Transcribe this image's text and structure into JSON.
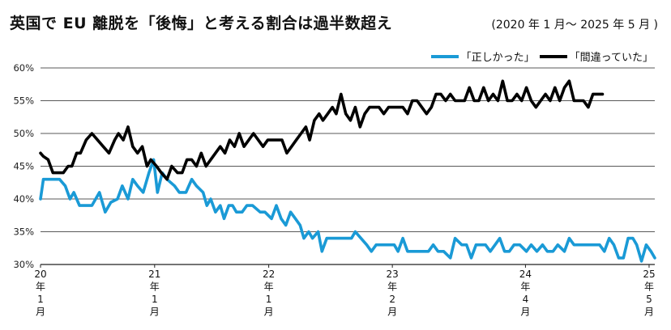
{
  "header": {
    "title": "英国で EU 離脱を「後悔」と考える割合は過半数超え",
    "subtitle": "(2020 年 1 月～ 2025 年 5 月 )"
  },
  "colors": {
    "correct": "#1a9ad6",
    "wrong": "#000000",
    "grid": "#222222"
  },
  "chart_data": {
    "type": "line",
    "title": "英国で EU 離脱を「後悔」と考える割合は過半数超え",
    "subtitle": "(2020 年 1 月～ 2025 年 5 月 )",
    "ylim": [
      30,
      60
    ],
    "yticks": [
      "30%",
      "35%",
      "40%",
      "45%",
      "50%",
      "55%",
      "60%"
    ],
    "ytick_values": [
      30,
      35,
      40,
      45,
      50,
      55,
      60
    ],
    "legend_position": "top-right",
    "x_start": "2020-01",
    "x_end": "2025-05",
    "x_ticks": [
      {
        "label": "20年1月",
        "lines": [
          "20",
          "年",
          "1",
          "月"
        ],
        "month_index": 0
      },
      {
        "label": "21年1月",
        "lines": [
          "21",
          "年",
          "1",
          "月"
        ],
        "month_index": 12
      },
      {
        "label": "22年1月",
        "lines": [
          "22",
          "年",
          "1",
          "月"
        ],
        "month_index": 24
      },
      {
        "label": "23年2月",
        "lines": [
          "23",
          "年",
          "2",
          "月"
        ],
        "month_index": 37
      },
      {
        "label": "24年4月",
        "lines": [
          "24",
          "年",
          "4",
          "月"
        ],
        "month_index": 51
      },
      {
        "label": "25年5月",
        "lines": [
          "25",
          "年",
          "5",
          "月"
        ],
        "month_index": 64
      }
    ],
    "series": [
      {
        "name": "「正しかった」",
        "color": "#1a9ad6",
        "points": [
          [
            0,
            40
          ],
          [
            0.3,
            43
          ],
          [
            1.1,
            43
          ],
          [
            2,
            43
          ],
          [
            2.6,
            42
          ],
          [
            3.1,
            40
          ],
          [
            3.5,
            41
          ],
          [
            4.1,
            39
          ],
          [
            4.9,
            39
          ],
          [
            5.4,
            39
          ],
          [
            6.2,
            41
          ],
          [
            6.8,
            38
          ],
          [
            7.4,
            39.5
          ],
          [
            8.1,
            40
          ],
          [
            8.6,
            42
          ],
          [
            9.2,
            40
          ],
          [
            9.7,
            43
          ],
          [
            10.2,
            42
          ],
          [
            10.8,
            41
          ],
          [
            11.4,
            44
          ],
          [
            11.9,
            46
          ],
          [
            12.3,
            41
          ],
          [
            12.8,
            44
          ],
          [
            13.3,
            43
          ],
          [
            14.1,
            42
          ],
          [
            14.6,
            41
          ],
          [
            15.3,
            41
          ],
          [
            15.9,
            43
          ],
          [
            16.4,
            42
          ],
          [
            17.1,
            41
          ],
          [
            17.5,
            39
          ],
          [
            17.9,
            40
          ],
          [
            18.4,
            38
          ],
          [
            18.9,
            39
          ],
          [
            19.3,
            37
          ],
          [
            19.8,
            39
          ],
          [
            20.2,
            39
          ],
          [
            20.6,
            38
          ],
          [
            21.2,
            38
          ],
          [
            21.7,
            39
          ],
          [
            22.3,
            39
          ],
          [
            23.1,
            38
          ],
          [
            23.6,
            38
          ],
          [
            24.3,
            37
          ],
          [
            24.8,
            39
          ],
          [
            25.3,
            37
          ],
          [
            25.8,
            36
          ],
          [
            26.3,
            38
          ],
          [
            26.8,
            37
          ],
          [
            27.3,
            36
          ],
          [
            27.7,
            34
          ],
          [
            28.2,
            35
          ],
          [
            28.6,
            34
          ],
          [
            29.2,
            35
          ],
          [
            29.6,
            32
          ],
          [
            30.1,
            34
          ],
          [
            30.6,
            34
          ],
          [
            31.3,
            34
          ],
          [
            32,
            34
          ],
          [
            32.7,
            34
          ],
          [
            33.1,
            35
          ],
          [
            33.7,
            34
          ],
          [
            34.3,
            33
          ],
          [
            34.8,
            32
          ],
          [
            35.3,
            33
          ],
          [
            35.9,
            33
          ],
          [
            36.6,
            33
          ],
          [
            37.2,
            33
          ],
          [
            37.6,
            32
          ],
          [
            38.1,
            34
          ],
          [
            38.6,
            32
          ],
          [
            39.1,
            32
          ],
          [
            39.6,
            32
          ],
          [
            40.3,
            32
          ],
          [
            40.8,
            32
          ],
          [
            41.3,
            33
          ],
          [
            41.8,
            32
          ],
          [
            42.4,
            32
          ],
          [
            43.1,
            31
          ],
          [
            43.6,
            34
          ],
          [
            44.3,
            33
          ],
          [
            44.8,
            33
          ],
          [
            45.3,
            31
          ],
          [
            45.8,
            33
          ],
          [
            46.3,
            33
          ],
          [
            46.8,
            33
          ],
          [
            47.3,
            32
          ],
          [
            47.8,
            33
          ],
          [
            48.3,
            34
          ],
          [
            48.8,
            32
          ],
          [
            49.3,
            32
          ],
          [
            49.8,
            33
          ],
          [
            50.4,
            33
          ],
          [
            51.1,
            32
          ],
          [
            51.6,
            33
          ],
          [
            52.2,
            32
          ],
          [
            52.8,
            33
          ],
          [
            53.3,
            32
          ],
          [
            53.9,
            32
          ],
          [
            54.4,
            33
          ],
          [
            55.1,
            32
          ],
          [
            55.6,
            34
          ],
          [
            56.1,
            33
          ],
          [
            56.8,
            33
          ],
          [
            57.5,
            33
          ],
          [
            58.2,
            33
          ],
          [
            58.8,
            33
          ],
          [
            59.3,
            32
          ],
          [
            59.8,
            34
          ],
          [
            60.3,
            33
          ],
          [
            60.8,
            31
          ],
          [
            61.3,
            31
          ],
          [
            61.8,
            34
          ],
          [
            62.3,
            34
          ],
          [
            62.7,
            33
          ],
          [
            63.2,
            30.5
          ],
          [
            63.7,
            33
          ],
          [
            64.2,
            32
          ],
          [
            64.6,
            31
          ]
        ]
      },
      {
        "name": "「間違っていた」",
        "color": "#000000",
        "points": [
          [
            0,
            47
          ],
          [
            0.3,
            46.5
          ],
          [
            0.8,
            46
          ],
          [
            1.3,
            44
          ],
          [
            1.8,
            44
          ],
          [
            2.4,
            44
          ],
          [
            2.9,
            45
          ],
          [
            3.3,
            45
          ],
          [
            3.8,
            47
          ],
          [
            4.2,
            47
          ],
          [
            4.8,
            49
          ],
          [
            5.4,
            50
          ],
          [
            6,
            49
          ],
          [
            6.6,
            48
          ],
          [
            7.2,
            47
          ],
          [
            7.8,
            49
          ],
          [
            8.2,
            50
          ],
          [
            8.7,
            49
          ],
          [
            9.2,
            51
          ],
          [
            9.7,
            48
          ],
          [
            10.2,
            47
          ],
          [
            10.7,
            48
          ],
          [
            11.2,
            45
          ],
          [
            11.6,
            46
          ],
          [
            12.2,
            45
          ],
          [
            12.7,
            44
          ],
          [
            13.3,
            43
          ],
          [
            13.8,
            45
          ],
          [
            14.4,
            44
          ],
          [
            14.9,
            44
          ],
          [
            15.4,
            46
          ],
          [
            15.9,
            46
          ],
          [
            16.4,
            45
          ],
          [
            16.9,
            47
          ],
          [
            17.4,
            45
          ],
          [
            17.9,
            46
          ],
          [
            18.4,
            47
          ],
          [
            18.9,
            48
          ],
          [
            19.4,
            47
          ],
          [
            19.9,
            49
          ],
          [
            20.4,
            48
          ],
          [
            20.9,
            50
          ],
          [
            21.4,
            48
          ],
          [
            21.9,
            49
          ],
          [
            22.4,
            50
          ],
          [
            22.9,
            49
          ],
          [
            23.4,
            48
          ],
          [
            23.9,
            49
          ],
          [
            24.4,
            49
          ],
          [
            24.9,
            49
          ],
          [
            25.4,
            49
          ],
          [
            25.9,
            47
          ],
          [
            26.4,
            48
          ],
          [
            26.9,
            49
          ],
          [
            27.4,
            50
          ],
          [
            27.9,
            51
          ],
          [
            28.3,
            49
          ],
          [
            28.8,
            52
          ],
          [
            29.3,
            53
          ],
          [
            29.7,
            52
          ],
          [
            30.2,
            53
          ],
          [
            30.7,
            54
          ],
          [
            31.1,
            53
          ],
          [
            31.6,
            56
          ],
          [
            32.1,
            53
          ],
          [
            32.6,
            52
          ],
          [
            33.1,
            54
          ],
          [
            33.6,
            51
          ],
          [
            34.1,
            53
          ],
          [
            34.6,
            54
          ],
          [
            35.1,
            54
          ],
          [
            35.6,
            54
          ],
          [
            36.1,
            53
          ],
          [
            36.6,
            54
          ],
          [
            37.1,
            54
          ],
          [
            37.6,
            54
          ],
          [
            38.1,
            54
          ],
          [
            38.6,
            53
          ],
          [
            39.1,
            55
          ],
          [
            39.6,
            55
          ],
          [
            40.1,
            54
          ],
          [
            40.6,
            53
          ],
          [
            41.1,
            54
          ],
          [
            41.6,
            56
          ],
          [
            42.1,
            56
          ],
          [
            42.6,
            55
          ],
          [
            43.1,
            56
          ],
          [
            43.6,
            55
          ],
          [
            44.1,
            55
          ],
          [
            44.6,
            55
          ],
          [
            45.1,
            57
          ],
          [
            45.6,
            55
          ],
          [
            46.1,
            55
          ],
          [
            46.6,
            57
          ],
          [
            47.1,
            55
          ],
          [
            47.6,
            56
          ],
          [
            48.1,
            55
          ],
          [
            48.6,
            58
          ],
          [
            49.1,
            55
          ],
          [
            49.6,
            55
          ],
          [
            50.1,
            56
          ],
          [
            50.6,
            55
          ],
          [
            51.1,
            57
          ],
          [
            51.6,
            55
          ],
          [
            52.1,
            54
          ],
          [
            52.6,
            55
          ],
          [
            53.1,
            56
          ],
          [
            53.6,
            55
          ],
          [
            54.1,
            57
          ],
          [
            54.6,
            55
          ],
          [
            55.1,
            57
          ],
          [
            55.6,
            58
          ],
          [
            56.1,
            55
          ],
          [
            56.6,
            55
          ],
          [
            57.1,
            55
          ],
          [
            57.6,
            54
          ],
          [
            58.1,
            56
          ],
          [
            58.6,
            56
          ],
          [
            59.1,
            56
          ]
        ]
      }
    ]
  }
}
